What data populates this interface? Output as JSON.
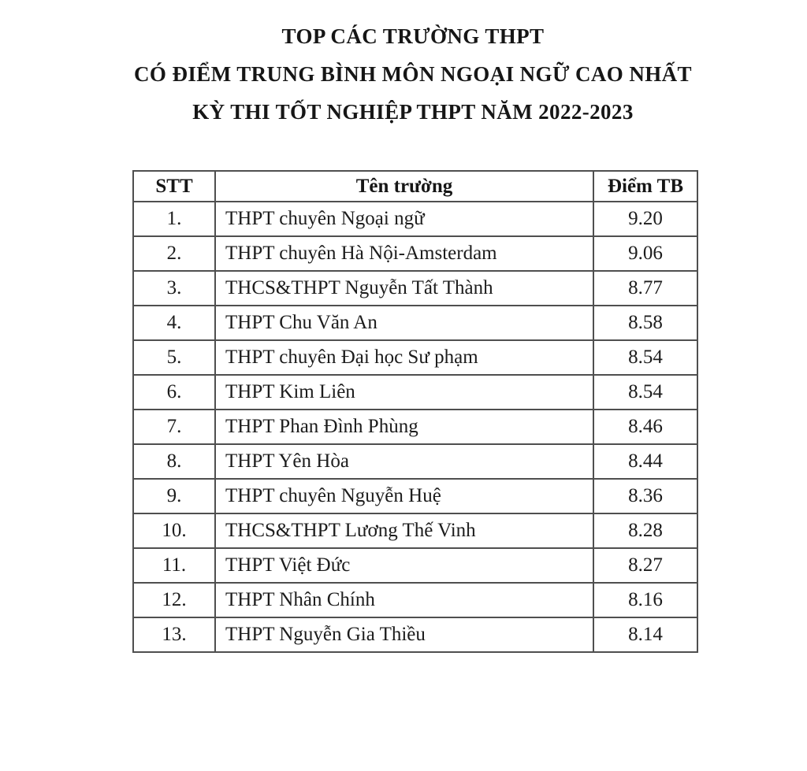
{
  "page": {
    "title_lines": [
      "TOP CÁC TRƯỜNG THPT",
      "CÓ ĐIỂM TRUNG BÌNH MÔN NGOẠI NGỮ CAO NHẤT",
      "KỲ THI TỐT NGHIỆP THPT NĂM 2022-2023"
    ]
  },
  "table": {
    "columns": [
      "STT",
      "Tên trường",
      "Điểm TB"
    ],
    "rows": [
      {
        "stt": "1.",
        "school": "THPT chuyên Ngoại ngữ",
        "score": "9.20"
      },
      {
        "stt": "2.",
        "school": "THPT chuyên Hà Nội-Amsterdam",
        "score": "9.06"
      },
      {
        "stt": "3.",
        "school": "THCS&THPT Nguyễn Tất Thành",
        "score": "8.77"
      },
      {
        "stt": "4.",
        "school": "THPT Chu Văn An",
        "score": "8.58"
      },
      {
        "stt": "5.",
        "school": "THPT chuyên Đại học Sư phạm",
        "score": "8.54"
      },
      {
        "stt": "6.",
        "school": "THPT Kim Liên",
        "score": "8.54"
      },
      {
        "stt": "7.",
        "school": "THPT Phan Đình Phùng",
        "score": "8.46"
      },
      {
        "stt": "8.",
        "school": "THPT Yên Hòa",
        "score": "8.44"
      },
      {
        "stt": "9.",
        "school": "THPT chuyên Nguyễn Huệ",
        "score": "8.36"
      },
      {
        "stt": "10.",
        "school": "THCS&THPT Lương Thế Vinh",
        "score": "8.28"
      },
      {
        "stt": "11.",
        "school": "THPT Việt Đức",
        "score": "8.27"
      },
      {
        "stt": "12.",
        "school": "THPT Nhân Chính",
        "score": "8.16"
      },
      {
        "stt": "13.",
        "school": "THPT Nguyễn Gia Thiều",
        "score": "8.14"
      }
    ]
  },
  "colors": {
    "text": "#1c1c1c",
    "border": "#4f4f4f",
    "background": "#ffffff"
  }
}
